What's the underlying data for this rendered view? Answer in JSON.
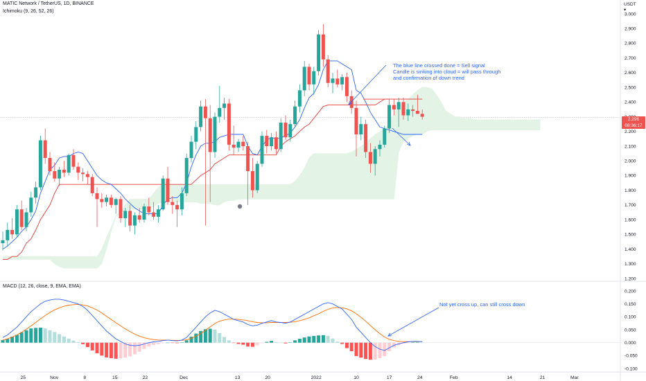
{
  "header": {
    "symbol_line": "MATIC Network / TetherUS, 1D, BINANCE",
    "ichimoku_label": "Ichimoku (9, 26, 52, 26)",
    "macd_label": "MACD (12, 26, close, 9, EMA, EMA)"
  },
  "currency": {
    "line1": "USDT",
    "line2": "▾"
  },
  "last_price": {
    "value": "2.296",
    "countdown": "08:36:17",
    "level": 2.296
  },
  "annotations": {
    "sell_signal": [
      "The blue line crossed done = Sell signal",
      "Candle is sinking into cloud = will pass through",
      "and confirmation of down trend"
    ],
    "macd_note": "Not yet cross up, can still cross down"
  },
  "colors": {
    "up": "#26a69a",
    "down": "#ef5350",
    "conversion": "#2962ff",
    "base": "#e53935",
    "cloud_bull": "#e3f3e6",
    "cloud_bear": "#fbe0e0",
    "macd_line": "#2962ff",
    "signal_line": "#ff6d00",
    "hist_up_strong": "#26a69a",
    "hist_up_weak": "#b2dfdb",
    "hist_down_strong": "#ff5252",
    "hist_down_weak": "#ffcdd2"
  },
  "chart_data": {
    "type": "candlestick",
    "x_ticks": [
      "25",
      "Nov",
      "8",
      "15",
      "22",
      "Dec",
      "13",
      "20",
      "2022",
      "10",
      "17",
      "24",
      "Feb",
      "14",
      "21",
      "Mar"
    ],
    "price_axis": {
      "ylim": [
        1.2,
        3.0
      ],
      "ticks": [
        "1.200",
        "1.300",
        "1.400",
        "1.500",
        "1.600",
        "1.700",
        "1.800",
        "1.900",
        "2.000",
        "2.100",
        "2.200",
        "2.300",
        "2.400",
        "2.500",
        "2.600",
        "2.700",
        "2.800",
        "2.900",
        "3.000"
      ]
    },
    "macd_axis": {
      "ylim": [
        -0.1,
        0.2
      ],
      "ticks": [
        "-0.100",
        "-0.050",
        "0.000",
        "0.050",
        "0.100",
        "0.150",
        "0.200"
      ]
    },
    "candles": [
      {
        "o": 1.44,
        "h": 1.52,
        "l": 1.39,
        "c": 1.46
      },
      {
        "o": 1.46,
        "h": 1.58,
        "l": 1.42,
        "c": 1.53
      },
      {
        "o": 1.53,
        "h": 1.61,
        "l": 1.47,
        "c": 1.5
      },
      {
        "o": 1.5,
        "h": 1.7,
        "l": 1.48,
        "c": 1.67
      },
      {
        "o": 1.67,
        "h": 1.73,
        "l": 1.53,
        "c": 1.55
      },
      {
        "o": 1.55,
        "h": 1.68,
        "l": 1.52,
        "c": 1.65
      },
      {
        "o": 1.65,
        "h": 1.79,
        "l": 1.62,
        "c": 1.75
      },
      {
        "o": 1.75,
        "h": 1.86,
        "l": 1.71,
        "c": 1.82
      },
      {
        "o": 1.82,
        "h": 2.17,
        "l": 1.8,
        "c": 2.14
      },
      {
        "o": 2.14,
        "h": 2.22,
        "l": 1.98,
        "c": 2.02
      },
      {
        "o": 2.02,
        "h": 2.06,
        "l": 1.9,
        "c": 1.93
      },
      {
        "o": 1.93,
        "h": 1.99,
        "l": 1.86,
        "c": 1.88
      },
      {
        "o": 1.88,
        "h": 1.96,
        "l": 1.83,
        "c": 1.94
      },
      {
        "o": 1.94,
        "h": 2.0,
        "l": 1.89,
        "c": 1.92
      },
      {
        "o": 1.92,
        "h": 2.05,
        "l": 1.9,
        "c": 2.04
      },
      {
        "o": 2.04,
        "h": 2.08,
        "l": 1.94,
        "c": 1.96
      },
      {
        "o": 1.96,
        "h": 1.99,
        "l": 1.87,
        "c": 1.92
      },
      {
        "o": 1.92,
        "h": 1.95,
        "l": 1.86,
        "c": 1.91
      },
      {
        "o": 1.91,
        "h": 1.93,
        "l": 1.84,
        "c": 1.89
      },
      {
        "o": 1.89,
        "h": 1.91,
        "l": 1.76,
        "c": 1.78
      },
      {
        "o": 1.78,
        "h": 1.82,
        "l": 1.55,
        "c": 1.74
      },
      {
        "o": 1.74,
        "h": 1.78,
        "l": 1.68,
        "c": 1.72
      },
      {
        "o": 1.72,
        "h": 1.77,
        "l": 1.69,
        "c": 1.75
      },
      {
        "o": 1.75,
        "h": 1.77,
        "l": 1.68,
        "c": 1.7
      },
      {
        "o": 1.7,
        "h": 1.75,
        "l": 1.64,
        "c": 1.74
      },
      {
        "o": 1.74,
        "h": 1.76,
        "l": 1.58,
        "c": 1.61
      },
      {
        "o": 1.61,
        "h": 1.68,
        "l": 1.55,
        "c": 1.66
      },
      {
        "o": 1.66,
        "h": 1.7,
        "l": 1.52,
        "c": 1.56
      },
      {
        "o": 1.56,
        "h": 1.65,
        "l": 1.5,
        "c": 1.63
      },
      {
        "o": 1.63,
        "h": 1.68,
        "l": 1.58,
        "c": 1.6
      },
      {
        "o": 1.6,
        "h": 1.71,
        "l": 1.58,
        "c": 1.69
      },
      {
        "o": 1.69,
        "h": 1.75,
        "l": 1.63,
        "c": 1.65
      },
      {
        "o": 1.65,
        "h": 1.72,
        "l": 1.6,
        "c": 1.62
      },
      {
        "o": 1.62,
        "h": 1.7,
        "l": 1.58,
        "c": 1.67
      },
      {
        "o": 1.67,
        "h": 1.9,
        "l": 1.66,
        "c": 1.88
      },
      {
        "o": 1.88,
        "h": 1.96,
        "l": 1.7,
        "c": 1.72
      },
      {
        "o": 1.72,
        "h": 1.76,
        "l": 1.64,
        "c": 1.7
      },
      {
        "o": 1.7,
        "h": 1.73,
        "l": 1.55,
        "c": 1.67
      },
      {
        "o": 1.67,
        "h": 1.82,
        "l": 1.63,
        "c": 1.78
      },
      {
        "o": 1.78,
        "h": 2.05,
        "l": 1.76,
        "c": 2.02
      },
      {
        "o": 2.02,
        "h": 2.17,
        "l": 1.99,
        "c": 2.13
      },
      {
        "o": 2.13,
        "h": 2.27,
        "l": 2.08,
        "c": 2.23
      },
      {
        "o": 2.23,
        "h": 2.41,
        "l": 2.2,
        "c": 2.37
      },
      {
        "o": 2.37,
        "h": 2.42,
        "l": 1.56,
        "c": 2.29
      },
      {
        "o": 2.29,
        "h": 2.38,
        "l": 1.72,
        "c": 2.06
      },
      {
        "o": 2.06,
        "h": 2.33,
        "l": 2.02,
        "c": 2.3
      },
      {
        "o": 2.3,
        "h": 2.51,
        "l": 2.26,
        "c": 2.36
      },
      {
        "o": 2.36,
        "h": 2.43,
        "l": 2.28,
        "c": 2.39
      },
      {
        "o": 2.39,
        "h": 2.42,
        "l": 2.07,
        "c": 2.11
      },
      {
        "o": 2.11,
        "h": 2.24,
        "l": 2.04,
        "c": 2.09
      },
      {
        "o": 2.09,
        "h": 2.15,
        "l": 2.06,
        "c": 2.13
      },
      {
        "o": 2.13,
        "h": 2.17,
        "l": 2.07,
        "c": 2.1
      },
      {
        "o": 2.1,
        "h": 2.13,
        "l": 1.7,
        "c": 1.93
      },
      {
        "o": 1.93,
        "h": 2.02,
        "l": 1.75,
        "c": 1.8
      },
      {
        "o": 1.8,
        "h": 2.0,
        "l": 1.78,
        "c": 1.98
      },
      {
        "o": 1.98,
        "h": 2.2,
        "l": 1.96,
        "c": 2.17
      },
      {
        "o": 2.17,
        "h": 2.21,
        "l": 2.05,
        "c": 2.1
      },
      {
        "o": 2.1,
        "h": 2.19,
        "l": 2.07,
        "c": 2.16
      },
      {
        "o": 2.16,
        "h": 2.2,
        "l": 2.05,
        "c": 2.08
      },
      {
        "o": 2.08,
        "h": 2.29,
        "l": 2.06,
        "c": 2.26
      },
      {
        "o": 2.26,
        "h": 2.31,
        "l": 2.14,
        "c": 2.16
      },
      {
        "o": 2.16,
        "h": 2.28,
        "l": 2.13,
        "c": 2.25
      },
      {
        "o": 2.25,
        "h": 2.41,
        "l": 2.23,
        "c": 2.37
      },
      {
        "o": 2.37,
        "h": 2.52,
        "l": 2.33,
        "c": 2.48
      },
      {
        "o": 2.48,
        "h": 2.68,
        "l": 2.44,
        "c": 2.64
      },
      {
        "o": 2.64,
        "h": 2.66,
        "l": 2.48,
        "c": 2.52
      },
      {
        "o": 2.52,
        "h": 2.64,
        "l": 2.45,
        "c": 2.61
      },
      {
        "o": 2.61,
        "h": 2.89,
        "l": 2.58,
        "c": 2.86
      },
      {
        "o": 2.86,
        "h": 2.93,
        "l": 2.64,
        "c": 2.69
      },
      {
        "o": 2.69,
        "h": 2.72,
        "l": 2.5,
        "c": 2.53
      },
      {
        "o": 2.53,
        "h": 2.6,
        "l": 2.46,
        "c": 2.56
      },
      {
        "o": 2.56,
        "h": 2.62,
        "l": 2.5,
        "c": 2.52
      },
      {
        "o": 2.52,
        "h": 2.59,
        "l": 2.48,
        "c": 2.57
      },
      {
        "o": 2.57,
        "h": 2.6,
        "l": 2.4,
        "c": 2.44
      },
      {
        "o": 2.44,
        "h": 2.48,
        "l": 2.32,
        "c": 2.36
      },
      {
        "o": 2.36,
        "h": 2.41,
        "l": 2.03,
        "c": 2.18
      },
      {
        "o": 2.18,
        "h": 2.3,
        "l": 2.14,
        "c": 2.25
      },
      {
        "o": 2.25,
        "h": 2.28,
        "l": 2.02,
        "c": 2.06
      },
      {
        "o": 2.06,
        "h": 2.12,
        "l": 1.92,
        "c": 1.98
      },
      {
        "o": 1.98,
        "h": 2.1,
        "l": 1.9,
        "c": 2.08
      },
      {
        "o": 2.08,
        "h": 2.14,
        "l": 2.03,
        "c": 2.11
      },
      {
        "o": 2.11,
        "h": 2.24,
        "l": 2.09,
        "c": 2.22
      },
      {
        "o": 2.22,
        "h": 2.42,
        "l": 2.19,
        "c": 2.38
      },
      {
        "o": 2.38,
        "h": 2.42,
        "l": 2.31,
        "c": 2.35
      },
      {
        "o": 2.35,
        "h": 2.43,
        "l": 2.23,
        "c": 2.4
      },
      {
        "o": 2.4,
        "h": 2.43,
        "l": 2.28,
        "c": 2.31
      },
      {
        "o": 2.31,
        "h": 2.39,
        "l": 2.27,
        "c": 2.35
      },
      {
        "o": 2.35,
        "h": 2.38,
        "l": 2.3,
        "c": 2.34
      },
      {
        "o": 2.34,
        "h": 2.45,
        "l": 2.32,
        "c": 2.32
      },
      {
        "o": 2.32,
        "h": 2.35,
        "l": 2.28,
        "c": 2.3
      }
    ],
    "ichimoku": {
      "conversion": [
        1.4,
        1.42,
        1.45,
        1.48,
        1.52,
        1.55,
        1.6,
        1.66,
        1.78,
        1.86,
        1.94,
        1.97,
        2.02,
        2.03,
        2.03,
        2.05,
        2.06,
        2.05,
        2.0,
        1.95,
        1.9,
        1.87,
        1.85,
        1.84,
        1.81,
        1.78,
        1.74,
        1.71,
        1.68,
        1.66,
        1.64,
        1.64,
        1.64,
        1.64,
        1.7,
        1.74,
        1.75,
        1.75,
        1.78,
        1.85,
        1.96,
        2.04,
        2.1,
        2.12,
        2.12,
        2.13,
        2.16,
        2.17,
        2.18,
        2.18,
        2.18,
        2.18,
        2.1,
        2.05,
        2.04,
        2.1,
        2.14,
        2.16,
        2.15,
        2.16,
        2.17,
        2.19,
        2.23,
        2.28,
        2.36,
        2.43,
        2.46,
        2.52,
        2.62,
        2.68,
        2.68,
        2.68,
        2.66,
        2.64,
        2.62,
        2.48,
        2.46,
        2.4,
        2.33,
        2.28,
        2.23,
        2.22,
        2.21,
        2.2,
        2.19,
        2.18,
        2.18,
        2.18,
        2.18,
        2.18
      ],
      "base": [
        1.33,
        1.33,
        1.35,
        1.35,
        1.38,
        1.44,
        1.47,
        1.53,
        1.6,
        1.65,
        1.7,
        1.78,
        1.84,
        1.84,
        1.84,
        1.84,
        1.84,
        1.84,
        1.84,
        1.84,
        1.84,
        1.84,
        1.84,
        1.84,
        1.84,
        1.84,
        1.84,
        1.84,
        1.84,
        1.84,
        1.84,
        1.84,
        1.84,
        1.84,
        1.84,
        1.84,
        1.84,
        1.84,
        1.84,
        1.84,
        1.84,
        1.87,
        1.9,
        1.92,
        1.94,
        1.98,
        2.0,
        2.02,
        2.04,
        2.04,
        2.04,
        2.04,
        2.04,
        2.04,
        2.04,
        2.04,
        2.04,
        2.04,
        2.04,
        2.1,
        2.13,
        2.15,
        2.17,
        2.2,
        2.23,
        2.25,
        2.29,
        2.33,
        2.37,
        2.38,
        2.38,
        2.38,
        2.38,
        2.38,
        2.38,
        2.38,
        2.38,
        2.38,
        2.38,
        2.38,
        2.4,
        2.42,
        2.42,
        2.42,
        2.42,
        2.42,
        2.42,
        2.42,
        2.42,
        2.42
      ],
      "span_a": [
        1.35,
        1.35,
        1.35,
        1.35,
        1.35,
        1.35,
        1.35,
        1.35,
        1.35,
        1.35,
        1.35,
        1.35,
        1.35,
        1.35,
        1.35,
        1.35,
        1.35,
        1.35,
        1.35,
        1.35,
        1.35,
        1.4,
        1.48,
        1.55,
        1.63,
        1.65,
        1.7,
        1.74,
        1.74,
        1.74,
        1.74,
        1.74,
        1.78,
        1.82,
        1.84,
        1.84,
        1.84,
        1.84,
        1.84,
        1.84,
        1.84,
        1.84,
        1.84,
        1.84,
        1.84,
        1.84,
        1.84,
        1.84,
        1.84,
        1.84,
        1.84,
        1.84,
        1.84,
        1.84,
        1.84,
        1.84,
        1.84,
        1.84,
        1.84,
        1.84,
        1.84,
        1.84,
        1.86,
        1.9,
        1.95,
        2.02,
        2.05,
        2.05,
        2.05,
        2.05,
        2.05,
        2.05,
        2.05,
        2.05,
        2.06,
        2.08,
        2.1,
        2.12,
        2.15,
        2.18,
        2.2,
        2.22,
        2.26,
        2.32,
        2.37,
        2.4,
        2.42,
        2.45,
        2.48,
        2.5,
        2.5,
        2.49,
        2.45,
        2.4,
        2.34,
        2.32,
        2.3,
        2.3,
        2.29,
        2.29,
        2.28,
        2.28,
        2.28,
        2.28,
        2.28,
        2.28,
        2.28,
        2.28,
        2.28,
        2.28,
        2.28,
        2.28,
        2.28,
        2.28,
        2.28
      ],
      "span_b": [
        1.33,
        1.33,
        1.33,
        1.33,
        1.33,
        1.33,
        1.33,
        1.33,
        1.33,
        1.33,
        1.33,
        1.3,
        1.28,
        1.27,
        1.27,
        1.27,
        1.27,
        1.27,
        1.27,
        1.27,
        1.27,
        1.3,
        1.4,
        1.52,
        1.62,
        1.65,
        1.66,
        1.67,
        1.67,
        1.67,
        1.67,
        1.67,
        1.69,
        1.71,
        1.72,
        1.72,
        1.72,
        1.72,
        1.72,
        1.72,
        1.72,
        1.72,
        1.71,
        1.71,
        1.71,
        1.7,
        1.7,
        1.72,
        1.73,
        1.73,
        1.74,
        1.74,
        1.74,
        1.74,
        1.74,
        1.74,
        1.74,
        1.74,
        1.74,
        1.74,
        1.74,
        1.74,
        1.74,
        1.74,
        1.74,
        1.74,
        1.74,
        1.74,
        1.74,
        1.74,
        1.74,
        1.74,
        1.74,
        1.74,
        1.74,
        1.74,
        1.74,
        1.74,
        1.74,
        1.74,
        1.74,
        1.74,
        1.74,
        1.74,
        2.06,
        2.13,
        2.15,
        2.17,
        2.18,
        2.18,
        2.2,
        2.21,
        2.21,
        2.21,
        2.21,
        2.21,
        2.21,
        2.21,
        2.21,
        2.21,
        2.21,
        2.21,
        2.21,
        2.21,
        2.21,
        2.21,
        2.21,
        2.21,
        2.21,
        2.21,
        2.21,
        2.21,
        2.21,
        2.21,
        2.21
      ]
    },
    "macd": {
      "macd_line": [
        0.02,
        0.03,
        0.045,
        0.06,
        0.08,
        0.1,
        0.12,
        0.135,
        0.15,
        0.16,
        0.165,
        0.168,
        0.168,
        0.165,
        0.16,
        0.155,
        0.15,
        0.14,
        0.125,
        0.105,
        0.085,
        0.065,
        0.045,
        0.03,
        0.015,
        0.005,
        -0.005,
        -0.01,
        -0.012,
        -0.01,
        -0.005,
        0.0,
        0.003,
        0.005,
        0.008,
        0.01,
        0.008,
        0.007,
        0.01,
        0.02,
        0.04,
        0.06,
        0.08,
        0.1,
        0.115,
        0.125,
        0.12,
        0.11,
        0.1,
        0.09,
        0.085,
        0.08,
        0.07,
        0.065,
        0.068,
        0.075,
        0.08,
        0.085,
        0.08,
        0.078,
        0.075,
        0.08,
        0.09,
        0.1,
        0.11,
        0.12,
        0.13,
        0.14,
        0.15,
        0.155,
        0.15,
        0.14,
        0.13,
        0.11,
        0.09,
        0.06,
        0.04,
        0.02,
        0.0,
        -0.015,
        -0.025,
        -0.03,
        -0.02,
        -0.01,
        -0.005,
        0.0,
        0.003,
        0.005,
        0.005,
        0.004
      ],
      "signal_line": [
        0.01,
        0.015,
        0.022,
        0.03,
        0.04,
        0.052,
        0.065,
        0.078,
        0.092,
        0.105,
        0.117,
        0.127,
        0.135,
        0.141,
        0.145,
        0.147,
        0.148,
        0.146,
        0.142,
        0.135,
        0.126,
        0.115,
        0.102,
        0.09,
        0.077,
        0.065,
        0.053,
        0.043,
        0.033,
        0.025,
        0.019,
        0.015,
        0.012,
        0.01,
        0.01,
        0.01,
        0.009,
        0.009,
        0.009,
        0.011,
        0.017,
        0.025,
        0.035,
        0.048,
        0.061,
        0.074,
        0.083,
        0.088,
        0.091,
        0.091,
        0.09,
        0.088,
        0.085,
        0.081,
        0.078,
        0.077,
        0.077,
        0.078,
        0.078,
        0.078,
        0.078,
        0.079,
        0.081,
        0.085,
        0.09,
        0.096,
        0.104,
        0.112,
        0.121,
        0.129,
        0.134,
        0.136,
        0.135,
        0.131,
        0.123,
        0.112,
        0.098,
        0.083,
        0.066,
        0.05,
        0.035,
        0.022,
        0.013,
        0.008,
        0.005,
        0.004,
        0.004,
        0.004,
        0.004,
        0.004
      ]
    }
  }
}
